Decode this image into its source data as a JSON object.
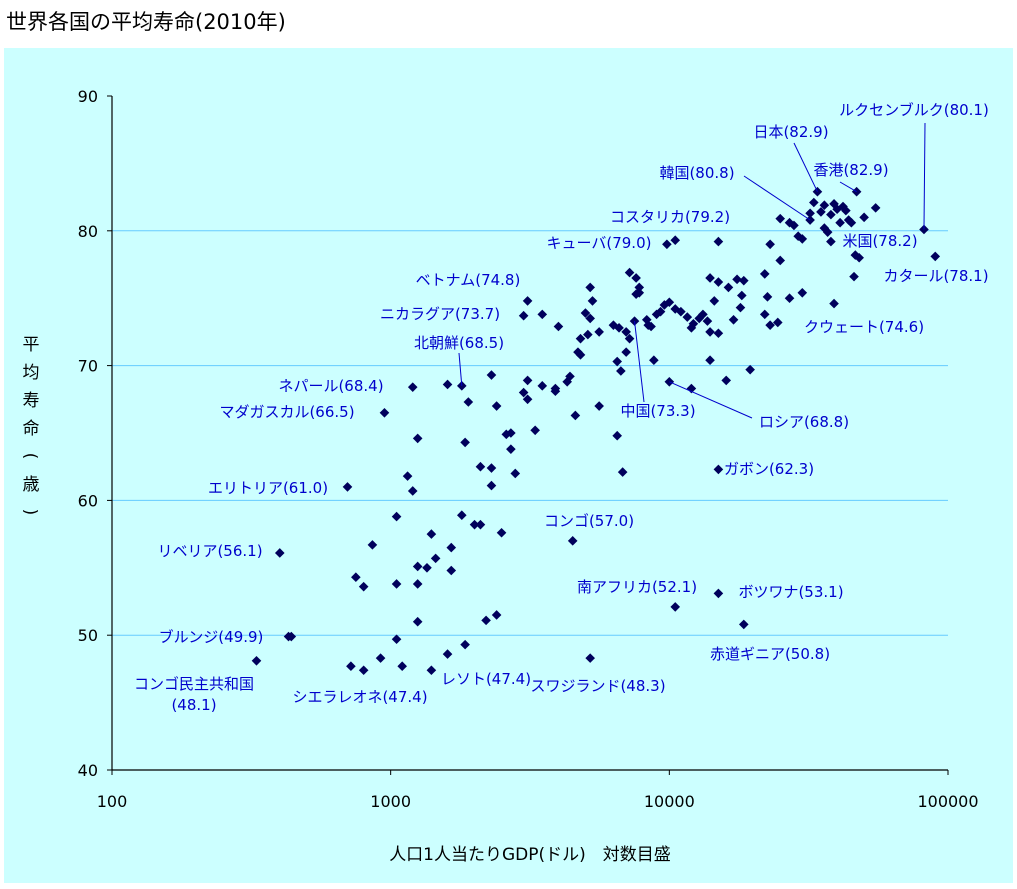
{
  "title": "世界各国の平均寿命(2010年)",
  "chart_data": {
    "type": "scatter",
    "title": "世界各国の平均寿命(2010年)",
    "xlabel": "人口1人当たりGDP(ドル)　対数目盛",
    "ylabel": "平均寿命(歳)",
    "ylabel_chars": [
      "平",
      "均",
      "寿",
      "命",
      "(",
      "歳",
      ")"
    ],
    "x_scale": "log",
    "xlim": [
      100,
      100000
    ],
    "ylim": [
      40,
      90
    ],
    "x_ticks": [
      100,
      1000,
      10000,
      100000
    ],
    "x_tick_labels": [
      "100",
      "1000",
      "10000",
      "100000"
    ],
    "y_ticks": [
      40,
      50,
      60,
      70,
      80,
      90
    ],
    "y_tick_labels": [
      "40",
      "50",
      "60",
      "70",
      "80",
      "90"
    ],
    "grid": "horizontal",
    "legend": "none",
    "marker_color": "#00005c",
    "annotation_color": "#0000cc",
    "points": [
      [
        82000,
        80.1
      ],
      [
        34000,
        82.9
      ],
      [
        47000,
        82.9
      ],
      [
        32000,
        80.8
      ],
      [
        15000,
        79.2
      ],
      [
        9800,
        79.0
      ],
      [
        46500,
        78.2
      ],
      [
        90000,
        78.1
      ],
      [
        3100,
        74.8
      ],
      [
        3000,
        73.7
      ],
      [
        1800,
        68.5
      ],
      [
        1200,
        68.4
      ],
      [
        950,
        66.5
      ],
      [
        700,
        61.0
      ],
      [
        400,
        56.1
      ],
      [
        430,
        49.9
      ],
      [
        440,
        49.9
      ],
      [
        330,
        48.1
      ],
      [
        7500,
        73.3
      ],
      [
        10000,
        68.8
      ],
      [
        15000,
        62.3
      ],
      [
        4500,
        57.0
      ],
      [
        10500,
        52.1
      ],
      [
        15000,
        53.1
      ],
      [
        18500,
        50.8
      ],
      [
        1400,
        47.4
      ],
      [
        800,
        47.4
      ],
      [
        5200,
        48.3
      ],
      [
        5200,
        75.8
      ],
      [
        5300,
        74.8
      ],
      [
        5000,
        73.9
      ],
      [
        5200,
        73.5
      ],
      [
        5600,
        72.5
      ],
      [
        5100,
        72.3
      ],
      [
        4800,
        72.0
      ],
      [
        4700,
        71.0
      ],
      [
        4800,
        70.8
      ],
      [
        4000,
        72.9
      ],
      [
        3500,
        73.8
      ],
      [
        4400,
        69.2
      ],
      [
        4300,
        68.8
      ],
      [
        3500,
        68.5
      ],
      [
        3900,
        68.3
      ],
      [
        3900,
        68.1
      ],
      [
        4600,
        66.3
      ],
      [
        5600,
        67.0
      ],
      [
        3100,
        68.9
      ],
      [
        3000,
        68.0
      ],
      [
        3100,
        67.5
      ],
      [
        3300,
        65.2
      ],
      [
        2700,
        65.0
      ],
      [
        2600,
        64.9
      ],
      [
        2700,
        63.8
      ],
      [
        2800,
        62.0
      ],
      [
        2300,
        69.3
      ],
      [
        2400,
        67.0
      ],
      [
        1900,
        67.3
      ],
      [
        1600,
        68.6
      ],
      [
        1850,
        64.3
      ],
      [
        1250,
        64.6
      ],
      [
        1150,
        61.8
      ],
      [
        1200,
        60.7
      ],
      [
        2100,
        62.5
      ],
      [
        2300,
        62.4
      ],
      [
        2300,
        61.1
      ],
      [
        1800,
        58.9
      ],
      [
        2000,
        58.2
      ],
      [
        2100,
        58.2
      ],
      [
        2500,
        57.6
      ],
      [
        1050,
        58.8
      ],
      [
        1400,
        57.5
      ],
      [
        1250,
        55.1
      ],
      [
        1450,
        55.7
      ],
      [
        1650,
        56.5
      ],
      [
        1350,
        55.0
      ],
      [
        860,
        56.7
      ],
      [
        750,
        54.3
      ],
      [
        800,
        53.6
      ],
      [
        1050,
        53.8
      ],
      [
        1250,
        53.8
      ],
      [
        1650,
        54.8
      ],
      [
        1250,
        51.0
      ],
      [
        1850,
        49.3
      ],
      [
        2200,
        51.1
      ],
      [
        2400,
        51.5
      ],
      [
        1050,
        49.7
      ],
      [
        920,
        48.3
      ],
      [
        720,
        47.7
      ],
      [
        1100,
        47.7
      ],
      [
        1600,
        48.6
      ],
      [
        6300,
        73.0
      ],
      [
        6600,
        72.8
      ],
      [
        7000,
        72.5
      ],
      [
        7200,
        72.0
      ],
      [
        7000,
        71.0
      ],
      [
        6500,
        70.3
      ],
      [
        6700,
        69.6
      ],
      [
        6500,
        64.8
      ],
      [
        6800,
        62.1
      ],
      [
        7600,
        76.5
      ],
      [
        7200,
        76.9
      ],
      [
        7800,
        75.8
      ],
      [
        7800,
        75.4
      ],
      [
        7600,
        75.3
      ],
      [
        8300,
        73.4
      ],
      [
        8400,
        73.0
      ],
      [
        8600,
        72.9
      ],
      [
        8800,
        70.4
      ],
      [
        9000,
        73.8
      ],
      [
        9300,
        74.0
      ],
      [
        9600,
        74.5
      ],
      [
        10000,
        74.7
      ],
      [
        10500,
        74.2
      ],
      [
        11000,
        74.0
      ],
      [
        11600,
        73.6
      ],
      [
        12200,
        73.1
      ],
      [
        12000,
        72.8
      ],
      [
        12800,
        73.5
      ],
      [
        13200,
        73.8
      ],
      [
        13700,
        73.3
      ],
      [
        14000,
        72.5
      ],
      [
        14500,
        74.8
      ],
      [
        14000,
        76.5
      ],
      [
        15000,
        76.2
      ],
      [
        16300,
        75.8
      ],
      [
        17500,
        76.4
      ],
      [
        18200,
        75.2
      ],
      [
        18500,
        76.3
      ],
      [
        18000,
        74.3
      ],
      [
        17000,
        73.4
      ],
      [
        15000,
        72.4
      ],
      [
        14000,
        70.4
      ],
      [
        12000,
        68.3
      ],
      [
        16000,
        68.9
      ],
      [
        19500,
        69.7
      ],
      [
        10500,
        79.3
      ],
      [
        22000,
        76.8
      ],
      [
        22500,
        75.1
      ],
      [
        22000,
        73.8
      ],
      [
        23000,
        73.0
      ],
      [
        24500,
        73.2
      ],
      [
        25000,
        77.8
      ],
      [
        27000,
        75.0
      ],
      [
        30000,
        75.4
      ],
      [
        25000,
        80.9
      ],
      [
        27000,
        80.6
      ],
      [
        29000,
        79.6
      ],
      [
        30000,
        79.4
      ],
      [
        28000,
        80.4
      ],
      [
        32000,
        81.3
      ],
      [
        35000,
        81.4
      ],
      [
        36000,
        80.2
      ],
      [
        37000,
        79.9
      ],
      [
        38000,
        81.2
      ],
      [
        40000,
        81.6
      ],
      [
        41000,
        80.6
      ],
      [
        42000,
        81.8
      ],
      [
        44000,
        80.8
      ],
      [
        39000,
        82.0
      ],
      [
        36000,
        81.9
      ],
      [
        38000,
        79.2
      ],
      [
        45000,
        80.6
      ],
      [
        55000,
        81.7
      ],
      [
        50000,
        81.0
      ],
      [
        48000,
        78.0
      ],
      [
        23000,
        79.0
      ],
      [
        43000,
        81.5
      ],
      [
        33000,
        82.1
      ],
      [
        46000,
        76.6
      ],
      [
        39000,
        74.6
      ]
    ],
    "annotations": [
      {
        "label": "ルクセンブルク(80.1)",
        "x": 82000,
        "y": 80.1
      },
      {
        "label": "日本(82.9)",
        "x": 34000,
        "y": 82.9
      },
      {
        "label": "香港(82.9)",
        "x": 47000,
        "y": 82.9
      },
      {
        "label": "韓国(80.8)",
        "x": 32000,
        "y": 80.8
      },
      {
        "label": "コスタリカ(79.2)",
        "x": 15000,
        "y": 79.2
      },
      {
        "label": "キューバ(79.0)",
        "x": 9800,
        "y": 79.0
      },
      {
        "label": "米国(78.2)",
        "x": 46500,
        "y": 78.2
      },
      {
        "label": "カタール(78.1)",
        "x": 90000,
        "y": 78.1
      },
      {
        "label": "ベトナム(74.8)",
        "x": 3100,
        "y": 74.8
      },
      {
        "label": "ニカラグア(73.7)",
        "x": 3000,
        "y": 73.7
      },
      {
        "label": "北朝鮮(68.5)",
        "x": 1800,
        "y": 68.5
      },
      {
        "label": "ネパール(68.4)",
        "x": 1200,
        "y": 68.4
      },
      {
        "label": "マダガスカル(66.5)",
        "x": 950,
        "y": 66.5
      },
      {
        "label": "エリトリア(61.0)",
        "x": 700,
        "y": 61.0
      },
      {
        "label": "リベリア(56.1)",
        "x": 400,
        "y": 56.1
      },
      {
        "label": "ブルンジ(49.9)",
        "x": 430,
        "y": 49.9
      },
      {
        "label": "コンゴ民主共和国",
        "label2": "(48.1)",
        "x": 330,
        "y": 48.1
      },
      {
        "label": "中国(73.3)",
        "x": 7500,
        "y": 73.3
      },
      {
        "label": "ロシア(68.8)",
        "x": 10000,
        "y": 68.8
      },
      {
        "label": "クウェート(74.6)",
        "x": 39000,
        "y": 74.6
      },
      {
        "label": "ガボン(62.3)",
        "x": 15000,
        "y": 62.3
      },
      {
        "label": "コンゴ(57.0)",
        "x": 4500,
        "y": 57.0
      },
      {
        "label": "南アフリカ(52.1)",
        "x": 10500,
        "y": 52.1
      },
      {
        "label": "ボツワナ(53.1)",
        "x": 15000,
        "y": 53.1
      },
      {
        "label": "赤道ギニア(50.8)",
        "x": 18500,
        "y": 50.8
      },
      {
        "label": "レソト(47.4)",
        "x": 1400,
        "y": 47.4
      },
      {
        "label": "シエラレオネ(47.4)",
        "x": 800,
        "y": 47.4
      },
      {
        "label": "スワジランド(48.3)",
        "x": 5200,
        "y": 48.3
      }
    ]
  }
}
